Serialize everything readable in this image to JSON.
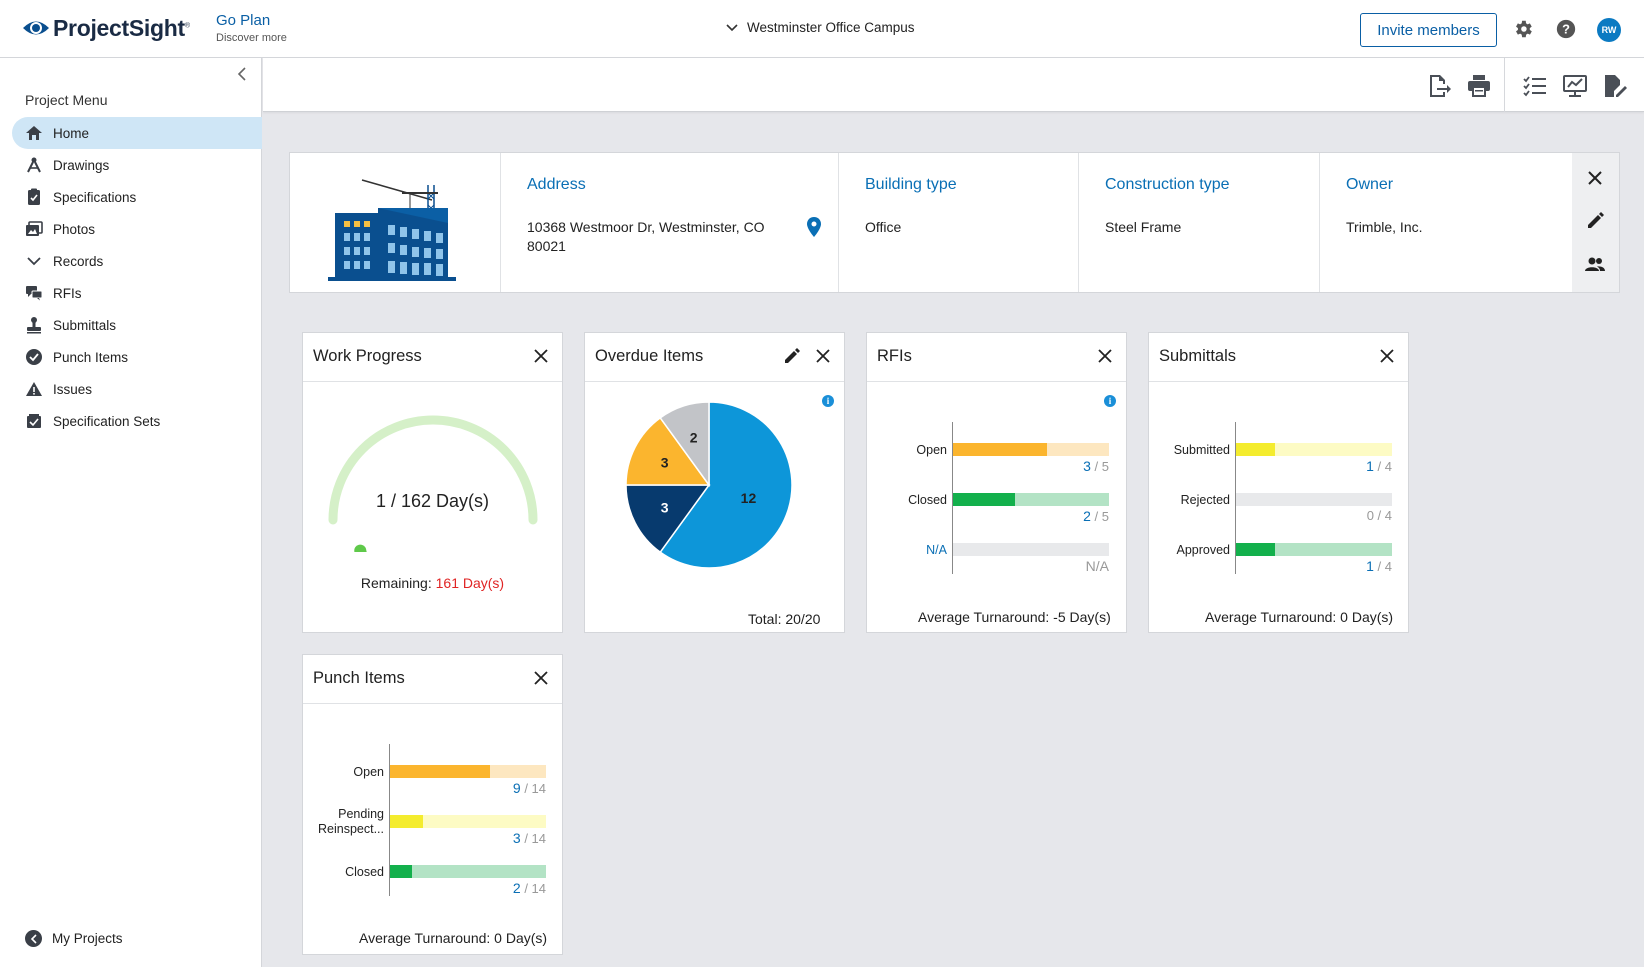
{
  "header": {
    "logo_text": "ProjectSight",
    "logo_mark": "®",
    "goplan_title": "Go Plan",
    "goplan_sub": "Discover more",
    "project_name": "Westminster Office Campus",
    "invite_label": "Invite members",
    "avatar_initials": "RW",
    "icons": [
      "gear-icon",
      "help-icon"
    ]
  },
  "sidebar": {
    "title": "Project Menu",
    "items": [
      {
        "label": "Home",
        "icon": "home-icon",
        "active": true
      },
      {
        "label": "Drawings",
        "icon": "drawings-icon"
      },
      {
        "label": "Specifications",
        "icon": "specifications-icon"
      },
      {
        "label": "Photos",
        "icon": "photos-icon"
      },
      {
        "label": "Records",
        "icon": "chevron-down-icon"
      },
      {
        "label": "RFIs",
        "icon": "rfis-icon"
      },
      {
        "label": "Submittals",
        "icon": "submittals-icon"
      },
      {
        "label": "Punch Items",
        "icon": "punch-items-icon"
      },
      {
        "label": "Issues",
        "icon": "issues-icon"
      },
      {
        "label": "Specification Sets",
        "icon": "specification-sets-icon"
      }
    ],
    "footer_label": "My Projects"
  },
  "toolbar": {
    "icons": [
      "export-icon",
      "print-icon",
      "checklist-icon",
      "presentation-icon",
      "edit-document-icon"
    ]
  },
  "project_info": {
    "address_label": "Address",
    "address_line1": "10368 Westmoor Dr, Westminster, CO",
    "address_line2": "80021",
    "building_type_label": "Building type",
    "building_type": "Office",
    "construction_type_label": "Construction type",
    "construction_type": "Steel Frame",
    "owner_label": "Owner",
    "owner": "Trimble, Inc."
  },
  "work_progress": {
    "title": "Work Progress",
    "days_text": "1 / 162 Day(s)",
    "progress_fraction": 0.00617,
    "remaining_label": "Remaining:",
    "remaining_value": "161 Day(s)"
  },
  "overdue_items": {
    "title": "Overdue Items",
    "total_text": "Total: 20/20",
    "chart_data": {
      "type": "pie",
      "slices": [
        {
          "value": 12,
          "color": "#0d96d9"
        },
        {
          "value": 3,
          "color": "#073a6e"
        },
        {
          "value": 3,
          "color": "#fbb52e"
        },
        {
          "value": 2,
          "color": "#c2c4c8"
        }
      ]
    }
  },
  "rfis": {
    "title": "RFIs",
    "footer": "Average Turnaround: -5 Day(s)",
    "chart_data": {
      "type": "bar",
      "categories": [
        "Open",
        "Closed",
        "N/A"
      ],
      "values": [
        3,
        2,
        null
      ],
      "totals": [
        5,
        5,
        null
      ],
      "count_text": [
        "/ 5",
        "/ 5",
        "N/A"
      ],
      "colors": [
        "#fbb52e",
        "#13b04c",
        "#e8e9eb"
      ],
      "track_colors": [
        "#fde7c0",
        "#b3e3c5",
        "#e8e9eb"
      ]
    }
  },
  "submittals": {
    "title": "Submittals",
    "footer": "Average Turnaround: 0 Day(s)",
    "chart_data": {
      "type": "bar",
      "categories": [
        "Submitted",
        "Rejected",
        "Approved"
      ],
      "values": [
        1,
        0,
        1
      ],
      "totals": [
        4,
        4,
        4
      ],
      "count_text": [
        "/ 4",
        "0 / 4",
        "/ 4"
      ],
      "colors": [
        "#f4ec2e",
        "#e8e9eb",
        "#13b04c"
      ],
      "track_colors": [
        "#fdfbc4",
        "#e8e9eb",
        "#b3e3c5"
      ]
    }
  },
  "punch_items": {
    "title": "Punch Items",
    "footer": "Average Turnaround: 0 Day(s)",
    "chart_data": {
      "type": "bar",
      "categories": [
        "Open",
        "Pending Reinspect...",
        "Closed"
      ],
      "values": [
        9,
        3,
        2
      ],
      "totals": [
        14,
        14,
        14
      ],
      "count_text": [
        "/ 14",
        "/ 14",
        "/ 14"
      ],
      "colors": [
        "#fbb52e",
        "#f4ec2e",
        "#13b04c"
      ],
      "track_colors": [
        "#fde7c0",
        "#fdfbc4",
        "#b3e3c5"
      ]
    }
  }
}
